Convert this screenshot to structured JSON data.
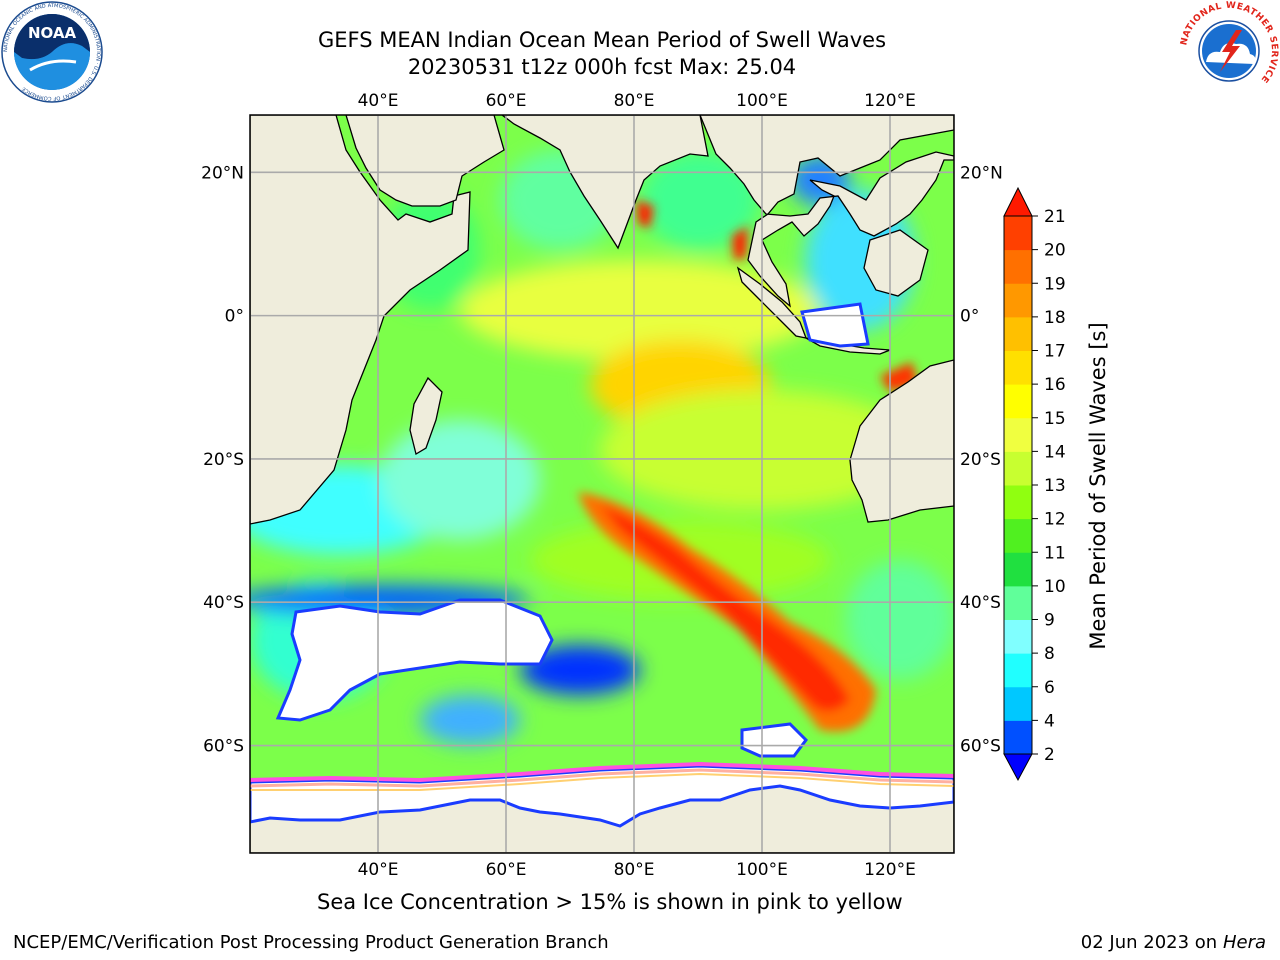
{
  "header": {
    "title_line1": "GEFS MEAN Indian Ocean Mean Period of Swell Waves",
    "title_line2": "20230531 t12z 000h fcst   Max: 25.04",
    "noaa_logo_text": "NOAA",
    "noaa_ring_text": "NATIONAL OCEANIC AND ATMOSPHERIC ADMINISTRATION · U.S. DEPARTMENT OF COMMERCE",
    "nws_ring_text": "NATIONAL WEATHER SERVICE"
  },
  "map": {
    "projection": "cylindrical",
    "lon_range": [
      20,
      130
    ],
    "lat_range": [
      -75,
      28
    ],
    "lon_ticks": [
      {
        "value": 40,
        "label": "40°E"
      },
      {
        "value": 60,
        "label": "60°E"
      },
      {
        "value": 80,
        "label": "80°E"
      },
      {
        "value": 100,
        "label": "100°E"
      },
      {
        "value": 120,
        "label": "120°E"
      }
    ],
    "lat_ticks": [
      {
        "value": 20,
        "label": "20°N"
      },
      {
        "value": 0,
        "label": "0°"
      },
      {
        "value": -20,
        "label": "20°S"
      },
      {
        "value": -40,
        "label": "40°S"
      },
      {
        "value": -60,
        "label": "60°S"
      }
    ],
    "grid": true,
    "colors": {
      "land": "#efeddc",
      "ocean_base": "#7cff4a",
      "grid": "#aaaaaa",
      "coast": "#000000"
    }
  },
  "colorbar": {
    "label": "Mean Period of Swell Waves [s]",
    "ticks": [
      "2",
      "4",
      "6",
      "8",
      "9",
      "10",
      "11",
      "12",
      "13",
      "14",
      "15",
      "16",
      "17",
      "18",
      "19",
      "20",
      "21"
    ],
    "colors": [
      "#0050ff",
      "#00c8ff",
      "#20ffff",
      "#80ffff",
      "#60ff9a",
      "#20e040",
      "#50f020",
      "#90ff10",
      "#c8ff30",
      "#f0ff40",
      "#ffff00",
      "#ffe000",
      "#ffc000",
      "#ff9800",
      "#ff7000",
      "#ff4000"
    ],
    "under_color": "#0000ff",
    "over_color": "#ff1a00"
  },
  "footer": {
    "ice_note": "Sea Ice Concentration > 15% is shown in pink to yellow",
    "left": "NCEP/EMC/Verification Post Processing Product Generation Branch",
    "right_date": "02 Jun 2023 on",
    "right_machine": "Hera"
  }
}
